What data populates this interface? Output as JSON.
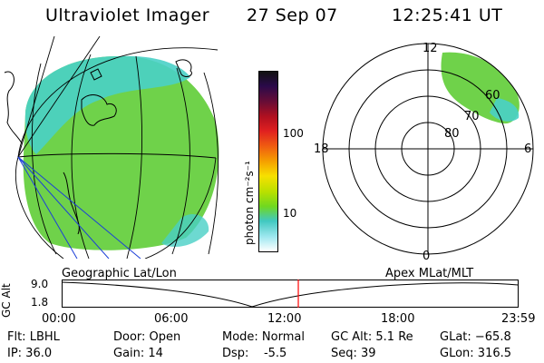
{
  "header": {
    "title": "Ultraviolet Imager",
    "date": "27 Sep 07",
    "time": "12:25:41 UT"
  },
  "colorbar": {
    "unit": "photon cm⁻²s⁻¹",
    "ticks": [
      "100",
      "10"
    ],
    "colors": [
      "#111111",
      "#2a0a4a",
      "#6a0d35",
      "#b01020",
      "#e02020",
      "#f06010",
      "#f5a000",
      "#f7e000",
      "#b8e000",
      "#70d820",
      "#40c8c0",
      "#a0e8f0",
      "#ffffff"
    ]
  },
  "polar": {
    "mlt_labels": {
      "top": "12",
      "bottom": "0",
      "left": "18",
      "right": "6"
    },
    "mlat_labels": [
      "80",
      "70",
      "60"
    ]
  },
  "timeline": {
    "left_label": "Geographic Lat/Lon",
    "right_label": "Apex MLat/MLT",
    "yaxis_label": "GC Alt",
    "y_ticks": [
      "9.0",
      "1.8"
    ],
    "x_ticks": [
      "00:00",
      "06:00",
      "12:00",
      "18:00",
      "23:59"
    ],
    "current_time_hours": 12.43
  },
  "params": {
    "flt": "Flt: LBHL",
    "ip": "IP: 36.0",
    "door": "Door: Open",
    "gain": "Gain: 14",
    "mode": "Mode: Normal",
    "dsp": "Dsp:    -5.5",
    "gcalt": "GC Alt: 5.1 Re",
    "seq": "Seq: 39",
    "glat": "GLat: −65.8",
    "glon": "GLon: 316.5"
  },
  "colors": {
    "aurora_green": "#6fd24a",
    "aurora_cyan": "#49d0c6",
    "marker_red": "#ff0000"
  }
}
